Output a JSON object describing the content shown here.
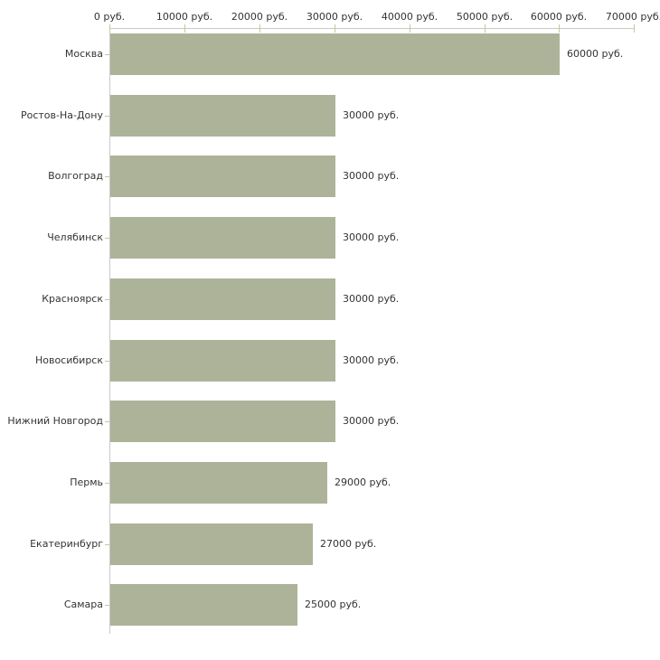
{
  "chart_data": {
    "type": "bar",
    "orientation": "horizontal",
    "title": "",
    "xlabel": "",
    "ylabel": "",
    "unit": "руб.",
    "categories": [
      "Москва",
      "Ростов-На-Дону",
      "Волгоград",
      "Челябинск",
      "Красноярск",
      "Новосибирск",
      "Нижний Новгород",
      "Пермь",
      "Екатеринбург",
      "Самара"
    ],
    "values": [
      60000,
      30000,
      30000,
      30000,
      30000,
      30000,
      30000,
      29000,
      27000,
      25000
    ],
    "value_labels": [
      "60000 руб.",
      "30000 руб.",
      "30000 руб.",
      "30000 руб.",
      "30000 руб.",
      "30000 руб.",
      "30000 руб.",
      "29000 руб.",
      "27000 руб.",
      "25000 руб."
    ],
    "x_ticks": [
      0,
      10000,
      20000,
      30000,
      40000,
      50000,
      60000,
      70000
    ],
    "x_tick_labels": [
      "0 руб.",
      "10000 руб.",
      "20000 руб.",
      "30000 руб.",
      "40000 руб.",
      "50000 руб.",
      "60000 руб.",
      "70000 руб."
    ],
    "xlim": [
      0,
      70000
    ],
    "axis_position": "top",
    "grid": false,
    "legend": false,
    "colors": {
      "bar": "#adb399",
      "tick": "#c8c5a0",
      "axis_line": "#c9c9c9",
      "text": "#333333",
      "background": "#ffffff"
    }
  }
}
